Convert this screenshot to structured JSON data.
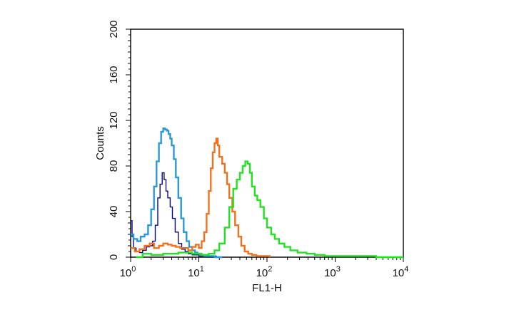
{
  "chart_data": {
    "type": "line",
    "title": "",
    "xlabel": "FL1-H",
    "ylabel": "Counts",
    "xscale": "log",
    "xlim": [
      1,
      10000
    ],
    "ylim": [
      0,
      200
    ],
    "grid": false,
    "legend": "none",
    "x_ticks": [
      {
        "value": 1,
        "base": "10",
        "exp": "0"
      },
      {
        "value": 10,
        "base": "10",
        "exp": "1"
      },
      {
        "value": 100,
        "base": "10",
        "exp": "2"
      },
      {
        "value": 1000,
        "base": "10",
        "exp": "3"
      },
      {
        "value": 10000,
        "base": "10",
        "exp": "4"
      }
    ],
    "y_ticks": [
      "0",
      "40",
      "80",
      "120",
      "160",
      "200"
    ],
    "series": [
      {
        "color": "#0a0a8c",
        "width": 1.4,
        "x": [
          1.0,
          1.05,
          1.1,
          1.2,
          1.35,
          1.5,
          1.7,
          1.9,
          2.1,
          2.3,
          2.5,
          2.7,
          2.9,
          3.1,
          3.3,
          3.5,
          3.8,
          4.1,
          4.5,
          5.0,
          5.6,
          6.3,
          7.0,
          8.0,
          9.0,
          10.0,
          11.5,
          13.0,
          15.0,
          18.0,
          22.0
        ],
        "y": [
          32,
          18,
          8,
          5,
          4,
          6,
          9,
          10,
          14,
          28,
          52,
          64,
          74,
          68,
          58,
          52,
          44,
          34,
          22,
          12,
          7,
          5,
          3,
          2,
          2,
          1,
          1,
          1,
          1,
          0,
          0
        ]
      },
      {
        "color": "#2a9ad6",
        "width": 2.4,
        "x": [
          1.0,
          1.1,
          1.25,
          1.4,
          1.6,
          1.8,
          2.0,
          2.2,
          2.4,
          2.6,
          2.8,
          3.0,
          3.2,
          3.4,
          3.6,
          3.8,
          4.0,
          4.3,
          4.6,
          5.0,
          5.5,
          6.0,
          6.6,
          7.2,
          8.0,
          8.8,
          9.6,
          10.5,
          12.0,
          14.0,
          17.0,
          22.0
        ],
        "y": [
          20,
          16,
          14,
          18,
          20,
          28,
          42,
          62,
          84,
          100,
          110,
          113,
          112,
          111,
          108,
          104,
          98,
          86,
          70,
          52,
          34,
          22,
          14,
          9,
          6,
          4,
          3,
          2,
          1,
          1,
          0,
          0
        ]
      },
      {
        "color": "#f2711f",
        "width": 2.4,
        "x": [
          1.0,
          1.15,
          1.35,
          1.6,
          1.9,
          2.2,
          2.6,
          3.0,
          3.5,
          4.0,
          4.6,
          5.3,
          6.0,
          7.0,
          8.0,
          9.0,
          10.0,
          11.0,
          12.0,
          13.0,
          14.0,
          15.0,
          16.0,
          17.0,
          18.0,
          19.0,
          20.0,
          22.0,
          24.0,
          26.0,
          28.0,
          31.0,
          34.0,
          38.0,
          42.0,
          47.0,
          53.0,
          60.0,
          70.0,
          85.0,
          110.0
        ],
        "y": [
          8,
          5,
          7,
          10,
          12,
          8,
          10,
          12,
          11,
          10,
          9,
          8,
          8,
          6,
          9,
          11,
          8,
          14,
          22,
          38,
          58,
          78,
          92,
          100,
          104,
          98,
          88,
          82,
          74,
          64,
          52,
          40,
          28,
          18,
          10,
          5,
          3,
          2,
          1,
          1,
          0
        ]
      },
      {
        "color": "#21e321",
        "width": 2.4,
        "x": [
          1.2,
          1.5,
          2.0,
          3.0,
          5.0,
          8.0,
          11.0,
          14.0,
          17.0,
          20.0,
          24.0,
          28.0,
          32.0,
          36.0,
          40.0,
          44.0,
          48.0,
          52.0,
          56.0,
          60.0,
          66.0,
          72.0,
          80.0,
          90.0,
          100.0,
          115.0,
          130.0,
          150.0,
          180.0,
          220.0,
          280.0,
          380.0,
          500.0,
          700.0,
          1000.0,
          2000.0,
          4000.0,
          10000.0
        ],
        "y": [
          0,
          3,
          2,
          3,
          4,
          3,
          2,
          3,
          6,
          12,
          26,
          44,
          60,
          68,
          74,
          80,
          84,
          82,
          74,
          62,
          54,
          50,
          44,
          34,
          26,
          20,
          16,
          12,
          9,
          6,
          4,
          3,
          2,
          1,
          1,
          1,
          0,
          0
        ]
      }
    ]
  }
}
